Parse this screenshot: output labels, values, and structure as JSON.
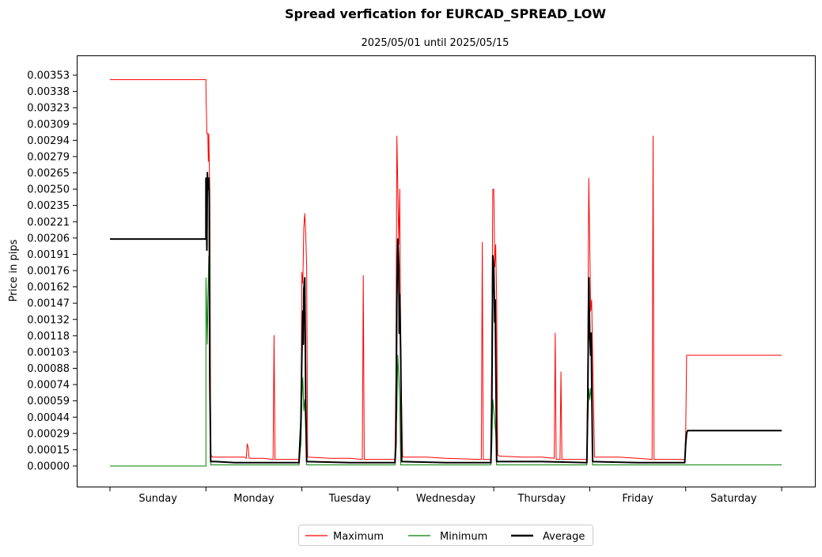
{
  "chart_data": {
    "type": "line",
    "title": "Spread verfication for EURCAD_SPREAD_LOW",
    "subtitle": "2025/05/01 until 2025/05/15",
    "ylabel": "Price in pips",
    "xlabel": "",
    "categories": [
      "Sunday",
      "Monday",
      "Tuesday",
      "Wednesday",
      "Thursday",
      "Friday",
      "Saturday"
    ],
    "x_range": [
      0,
      7
    ],
    "ylim": [
      -0.00018,
      0.00362
    ],
    "y_ticks": [
      "0.00000",
      "0.00015",
      "0.00029",
      "0.00044",
      "0.00059",
      "0.00074",
      "0.00088",
      "0.00103",
      "0.00118",
      "0.00132",
      "0.00147",
      "0.00162",
      "0.00176",
      "0.00191",
      "0.00206",
      "0.00221",
      "0.00235",
      "0.00250",
      "0.00265",
      "0.00279",
      "0.00294",
      "0.00309",
      "0.00323",
      "0.00338",
      "0.00353"
    ],
    "legend_position": "bottom-center",
    "series": [
      {
        "name": "Maximum",
        "color": "#ff0000",
        "width": 1,
        "points": [
          [
            0,
            0.00349
          ],
          [
            1.0,
            0.00349
          ],
          [
            1.0,
            0.0034
          ],
          [
            1.01,
            0.003
          ],
          [
            1.02,
            0.003
          ],
          [
            1.025,
            0.00275
          ],
          [
            1.03,
            0.003
          ],
          [
            1.04,
            0.0025
          ],
          [
            1.05,
            0.0001
          ],
          [
            1.07,
            8e-05
          ],
          [
            1.2,
            8e-05
          ],
          [
            1.4,
            8e-05
          ],
          [
            1.42,
            7e-05
          ],
          [
            1.43,
            0.0002
          ],
          [
            1.44,
            0.00017
          ],
          [
            1.45,
            7e-05
          ],
          [
            1.6,
            7e-05
          ],
          [
            1.7,
            6e-05
          ],
          [
            1.71,
            0.00118
          ],
          [
            1.72,
            6e-05
          ],
          [
            1.97,
            6e-05
          ],
          [
            1.99,
            0.00025
          ],
          [
            2.0,
            0.00175
          ],
          [
            2.01,
            0.00165
          ],
          [
            2.02,
            0.00215
          ],
          [
            2.03,
            0.00228
          ],
          [
            2.04,
            0.0021
          ],
          [
            2.05,
            0.0018
          ],
          [
            2.06,
            8e-05
          ],
          [
            2.3,
            7e-05
          ],
          [
            2.5,
            7e-05
          ],
          [
            2.63,
            6e-05
          ],
          [
            2.64,
            0.00172
          ],
          [
            2.65,
            6e-05
          ],
          [
            2.9,
            6e-05
          ],
          [
            2.97,
            6e-05
          ],
          [
            2.98,
            0.0008
          ],
          [
            2.99,
            0.00298
          ],
          [
            3.0,
            0.0025
          ],
          [
            3.01,
            0.002
          ],
          [
            3.02,
            0.0025
          ],
          [
            3.03,
            0.001
          ],
          [
            3.05,
            8e-05
          ],
          [
            3.3,
            8e-05
          ],
          [
            3.5,
            7e-05
          ],
          [
            3.85,
            6e-05
          ],
          [
            3.87,
            6e-05
          ],
          [
            3.88,
            0.00202
          ],
          [
            3.89,
            6e-05
          ],
          [
            3.97,
            6e-05
          ],
          [
            3.98,
            0.0012
          ],
          [
            3.99,
            0.0025
          ],
          [
            4.0,
            0.0025
          ],
          [
            4.01,
            0.0018
          ],
          [
            4.02,
            0.002
          ],
          [
            4.03,
            0.0015
          ],
          [
            4.04,
            0.0001
          ],
          [
            4.06,
            9e-05
          ],
          [
            4.3,
            8e-05
          ],
          [
            4.5,
            8e-05
          ],
          [
            4.63,
            7e-05
          ],
          [
            4.64,
            0.0012
          ],
          [
            4.65,
            6e-05
          ],
          [
            4.69,
            6e-05
          ],
          [
            4.7,
            0.00085
          ],
          [
            4.71,
            6e-05
          ],
          [
            4.97,
            6e-05
          ],
          [
            4.98,
            0.001
          ],
          [
            4.99,
            0.0026
          ],
          [
            5.0,
            0.002
          ],
          [
            5.01,
            0.0014
          ],
          [
            5.02,
            0.0015
          ],
          [
            5.03,
            0.001
          ],
          [
            5.05,
            8e-05
          ],
          [
            5.3,
            8e-05
          ],
          [
            5.5,
            7e-05
          ],
          [
            5.65,
            6e-05
          ],
          [
            5.66,
            0.00298
          ],
          [
            5.67,
            6e-05
          ],
          [
            5.99,
            6e-05
          ],
          [
            6.0,
            0.0003
          ],
          [
            6.01,
            0.001
          ],
          [
            7.0,
            0.001
          ]
        ]
      },
      {
        "name": "Minimum",
        "color": "#008000",
        "width": 1,
        "points": [
          [
            0,
            0.0
          ],
          [
            1.0,
            0.0
          ],
          [
            1.0,
            0.0017
          ],
          [
            1.01,
            0.0013
          ],
          [
            1.015,
            0.0011
          ],
          [
            1.02,
            0.0015
          ],
          [
            1.03,
            0.0019
          ],
          [
            1.035,
            0.0012
          ],
          [
            1.04,
            0.001
          ],
          [
            1.05,
            1e-05
          ],
          [
            1.97,
            1e-05
          ],
          [
            1.99,
            0.0002
          ],
          [
            2.0,
            0.0006
          ],
          [
            2.01,
            0.0008
          ],
          [
            2.02,
            0.0005
          ],
          [
            2.03,
            0.0006
          ],
          [
            2.05,
            1e-05
          ],
          [
            2.97,
            1e-05
          ],
          [
            2.99,
            0.0005
          ],
          [
            3.0,
            0.001
          ],
          [
            3.01,
            0.0008
          ],
          [
            3.02,
            0.0006
          ],
          [
            3.03,
            1e-05
          ],
          [
            3.97,
            1e-05
          ],
          [
            3.98,
            0.0002
          ],
          [
            3.99,
            0.0006
          ],
          [
            4.0,
            0.0005
          ],
          [
            4.01,
            0.0004
          ],
          [
            4.02,
            0.0003
          ],
          [
            4.03,
            1e-05
          ],
          [
            4.97,
            1e-05
          ],
          [
            4.98,
            0.0004
          ],
          [
            4.99,
            0.0007
          ],
          [
            5.0,
            0.0006
          ],
          [
            5.01,
            0.0007
          ],
          [
            5.02,
            0.0006
          ],
          [
            5.03,
            1e-05
          ],
          [
            6.0,
            1e-05
          ],
          [
            6.0,
            1e-05
          ],
          [
            7.0,
            1e-05
          ]
        ]
      },
      {
        "name": "Average",
        "color": "#000000",
        "width": 2,
        "points": [
          [
            0,
            0.00205
          ],
          [
            1.0,
            0.00205
          ],
          [
            1.0,
            0.0026
          ],
          [
            1.01,
            0.00195
          ],
          [
            1.015,
            0.00265
          ],
          [
            1.02,
            0.0025
          ],
          [
            1.03,
            0.0026
          ],
          [
            1.035,
            0.0024
          ],
          [
            1.04,
            0.0008
          ],
          [
            1.05,
            4e-05
          ],
          [
            1.1,
            4e-05
          ],
          [
            1.3,
            3e-05
          ],
          [
            1.6,
            3e-05
          ],
          [
            1.97,
            3e-05
          ],
          [
            1.99,
            0.0004
          ],
          [
            2.0,
            0.001
          ],
          [
            2.01,
            0.0014
          ],
          [
            2.015,
            0.0011
          ],
          [
            2.02,
            0.0016
          ],
          [
            2.03,
            0.0017
          ],
          [
            2.035,
            0.0012
          ],
          [
            2.04,
            0.0006
          ],
          [
            2.05,
            4e-05
          ],
          [
            2.5,
            3e-05
          ],
          [
            2.97,
            3e-05
          ],
          [
            2.98,
            0.0002
          ],
          [
            2.99,
            0.0015
          ],
          [
            3.0,
            0.00205
          ],
          [
            3.01,
            0.0018
          ],
          [
            3.015,
            0.0012
          ],
          [
            3.02,
            0.00155
          ],
          [
            3.03,
            0.001
          ],
          [
            3.04,
            4e-05
          ],
          [
            3.5,
            3e-05
          ],
          [
            3.97,
            3e-05
          ],
          [
            3.98,
            0.0006
          ],
          [
            3.99,
            0.0019
          ],
          [
            4.0,
            0.0018
          ],
          [
            4.01,
            0.0013
          ],
          [
            4.015,
            0.0015
          ],
          [
            4.02,
            0.001
          ],
          [
            4.03,
            4e-05
          ],
          [
            4.5,
            4e-05
          ],
          [
            4.97,
            3e-05
          ],
          [
            4.98,
            0.0006
          ],
          [
            4.99,
            0.0017
          ],
          [
            5.0,
            0.0012
          ],
          [
            5.01,
            0.001
          ],
          [
            5.015,
            0.0012
          ],
          [
            5.02,
            0.0008
          ],
          [
            5.03,
            4e-05
          ],
          [
            5.5,
            3e-05
          ],
          [
            5.99,
            3e-05
          ],
          [
            6.0,
            0.0002
          ],
          [
            6.01,
            0.0003
          ],
          [
            6.02,
            0.00032
          ],
          [
            7.0,
            0.00032
          ]
        ]
      }
    ]
  }
}
